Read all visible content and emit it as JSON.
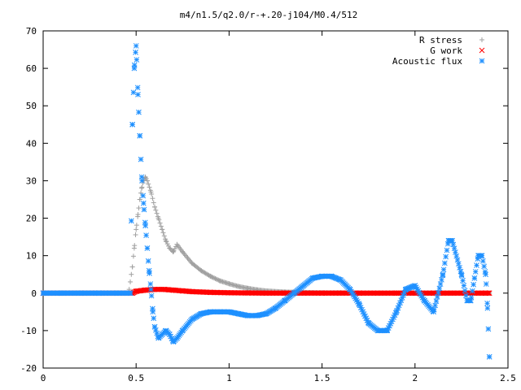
{
  "chart_data": {
    "type": "scatter",
    "title": "m4/n1.5/q2.0/r-+.20-j104/M0.4/512",
    "xlabel": "",
    "ylabel": "",
    "xlim": [
      0,
      2.5
    ],
    "ylim": [
      -20,
      70
    ],
    "x_ticks": [
      0,
      0.5,
      1,
      1.5,
      2,
      2.5
    ],
    "x_tick_labels": [
      "0",
      "0.5",
      "1",
      "1.5",
      "2",
      "2.5"
    ],
    "y_ticks": [
      -20,
      -10,
      0,
      10,
      20,
      30,
      40,
      50,
      60,
      70
    ],
    "y_tick_labels": [
      "-20",
      "-10",
      "0",
      "10",
      "20",
      "30",
      "40",
      "50",
      "60",
      "70"
    ],
    "grid": false,
    "legend_position": "top-right",
    "series": [
      {
        "name": "R stress",
        "marker": "plus",
        "color": "#a0a0a0",
        "x": [
          0.0,
          0.1,
          0.2,
          0.3,
          0.4,
          0.46,
          0.48,
          0.49,
          0.5,
          0.51,
          0.52,
          0.53,
          0.54,
          0.55,
          0.56,
          0.58,
          0.6,
          0.62,
          0.64,
          0.66,
          0.68,
          0.7,
          0.72,
          0.75,
          0.8,
          0.85,
          0.9,
          0.95,
          1.0,
          1.05,
          1.1,
          1.15,
          1.2,
          1.3,
          1.4,
          1.5,
          1.6,
          1.7,
          1.8,
          1.9,
          2.0,
          2.1,
          2.2,
          2.3,
          2.38,
          2.4
        ],
        "y": [
          0,
          0,
          0,
          0,
          0,
          0,
          7,
          12,
          17,
          21,
          25,
          28,
          30,
          31,
          30,
          27,
          23,
          20,
          17,
          14,
          12,
          11,
          13,
          11,
          8,
          6,
          4.5,
          3.3,
          2.5,
          1.8,
          1.3,
          0.9,
          0.6,
          0.3,
          0.2,
          0.1,
          0.1,
          0,
          0,
          0,
          0,
          0,
          0,
          0,
          0,
          0
        ]
      },
      {
        "name": "G work",
        "marker": "cross",
        "color": "#ff0000",
        "x": [
          0.0,
          0.1,
          0.2,
          0.3,
          0.4,
          0.48,
          0.5,
          0.55,
          0.6,
          0.65,
          0.7,
          0.75,
          0.8,
          0.9,
          1.0,
          1.1,
          1.2,
          1.3,
          1.4,
          1.5,
          1.6,
          1.7,
          1.8,
          1.9,
          2.0,
          2.1,
          2.2,
          2.3,
          2.38,
          2.4
        ],
        "y": [
          0,
          0,
          0,
          0,
          0,
          0,
          0.5,
          0.8,
          1.0,
          1.0,
          0.8,
          0.6,
          0.4,
          0.2,
          0.1,
          0.05,
          0,
          0,
          0,
          0,
          0,
          0,
          0,
          0,
          0,
          0,
          0,
          0,
          0,
          0
        ]
      },
      {
        "name": "Acoustic flux",
        "marker": "asterisk",
        "color": "#1e90ff",
        "x": [
          0.0,
          0.1,
          0.2,
          0.3,
          0.4,
          0.47,
          0.48,
          0.49,
          0.5,
          0.51,
          0.52,
          0.53,
          0.54,
          0.55,
          0.56,
          0.57,
          0.58,
          0.59,
          0.6,
          0.62,
          0.64,
          0.66,
          0.68,
          0.7,
          0.72,
          0.75,
          0.8,
          0.85,
          0.9,
          0.95,
          1.0,
          1.05,
          1.1,
          1.15,
          1.2,
          1.25,
          1.3,
          1.35,
          1.4,
          1.45,
          1.5,
          1.55,
          1.6,
          1.65,
          1.7,
          1.75,
          1.8,
          1.85,
          1.9,
          1.95,
          2.0,
          2.05,
          2.1,
          2.15,
          2.18,
          2.2,
          2.25,
          2.28,
          2.3,
          2.32,
          2.34,
          2.36,
          2.38,
          2.39,
          2.4
        ],
        "y": [
          0,
          0,
          0,
          0,
          0,
          0,
          45,
          60,
          66,
          53,
          42,
          31,
          24,
          18,
          12,
          6,
          1,
          -5,
          -9,
          -12,
          -11,
          -10,
          -11,
          -13,
          -12,
          -10,
          -7,
          -5.5,
          -5,
          -5,
          -5,
          -5.5,
          -6,
          -6,
          -5.5,
          -4,
          -2,
          0,
          2,
          4,
          4.5,
          4.5,
          3.5,
          1,
          -3,
          -8,
          -10,
          -10,
          -5,
          1,
          2,
          -2,
          -5,
          5,
          14,
          14,
          5,
          -2,
          -2,
          4,
          10,
          10,
          5,
          -4,
          -17
        ]
      }
    ]
  }
}
